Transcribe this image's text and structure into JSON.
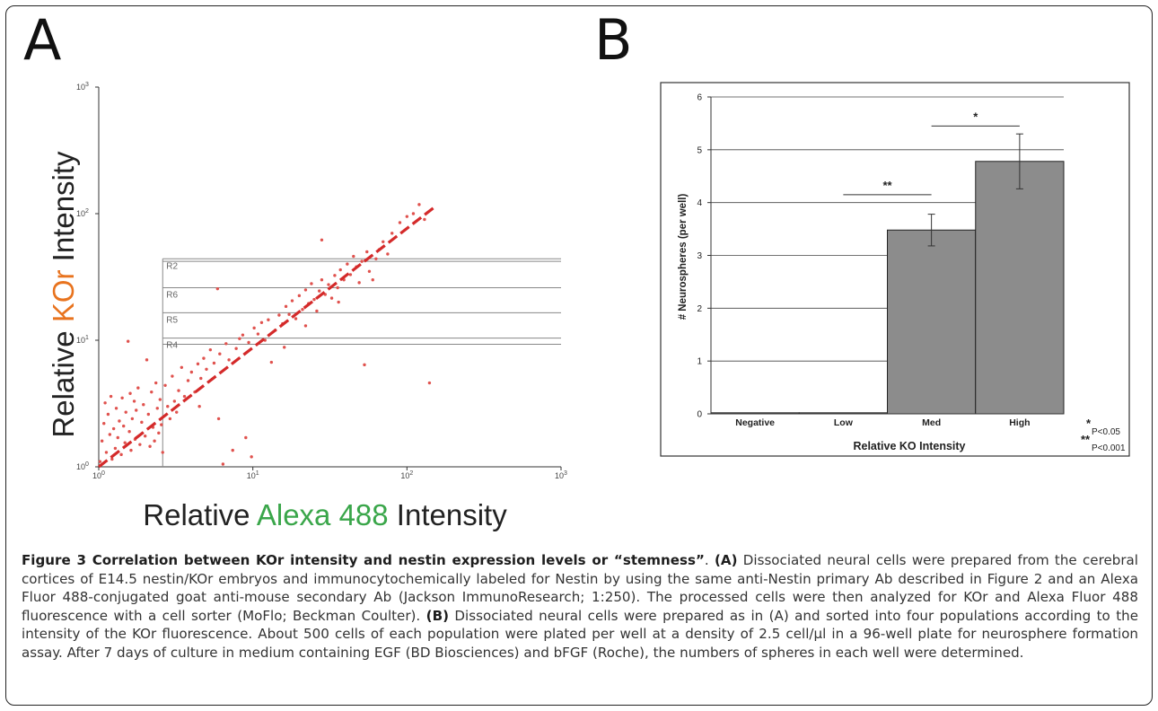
{
  "panel_a": {
    "letter": "A",
    "y_axis_label": {
      "prefix": "Relative ",
      "highlight": "KOr",
      "suffix": " Intensity",
      "highlight_color": "#e8731e"
    },
    "x_axis_label": {
      "prefix": "Relative ",
      "highlight": "Alexa 488",
      "suffix": " Intensity",
      "highlight_color": "#3aa64a"
    },
    "regions": [
      {
        "label": "R2",
        "y_low": 42,
        "y_high": 44
      },
      {
        "label": "R6",
        "y_low": 26,
        "y_high": 26
      },
      {
        "label": "R5",
        "y_low": 16.5,
        "y_high": 16.5
      },
      {
        "label": "R4",
        "y_low": 9.3,
        "y_high": 10.4,
        "x_start": 2.6
      }
    ],
    "colors": {
      "points": "#e0524e",
      "trend": "#d42a2a",
      "gates": "#888888"
    }
  },
  "panel_b": {
    "letter": "B",
    "significance": [
      {
        "label": "**",
        "between": [
          "Low",
          "Med"
        ],
        "y": 4.15
      },
      {
        "label": "*",
        "between": [
          "Med",
          "High"
        ],
        "y": 5.45
      }
    ],
    "p_values": [
      {
        "stars": "*",
        "text": "P<0.05"
      },
      {
        "stars": "**",
        "text": "P<0.001"
      }
    ],
    "colors": {
      "bar": "#8c8c8c"
    }
  },
  "chart_data": [
    {
      "type": "scatter",
      "x_scale": "log",
      "y_scale": "log",
      "xlim": [
        1,
        1000
      ],
      "ylim": [
        1,
        1000
      ],
      "xticks": [
        1,
        10,
        100,
        1000
      ],
      "yticks": [
        1,
        10,
        100,
        1000
      ],
      "tick_labels": {
        "x": [
          {
            "base": "10",
            "exp": "0"
          },
          {
            "base": "10",
            "exp": "1"
          },
          {
            "base": "10",
            "exp": "2"
          },
          {
            "base": "10",
            "exp": "3"
          }
        ],
        "y": [
          {
            "base": "10",
            "exp": "0"
          },
          {
            "base": "10",
            "exp": "1"
          },
          {
            "base": "10",
            "exp": "2"
          },
          {
            "base": "10",
            "exp": "3"
          }
        ]
      },
      "xlabel": "Relative Alexa 488 Intensity",
      "ylabel": "Relative KOr Intensity",
      "trend_line": {
        "x": [
          1,
          150
        ],
        "y": [
          1,
          112
        ]
      },
      "points": [
        [
          1.02,
          1.1
        ],
        [
          1.05,
          1.6
        ],
        [
          1.08,
          2.2
        ],
        [
          1.1,
          3.2
        ],
        [
          1.12,
          1.3
        ],
        [
          1.15,
          2.6
        ],
        [
          1.18,
          1.8
        ],
        [
          1.2,
          3.6
        ],
        [
          1.22,
          1.15
        ],
        [
          1.25,
          2.0
        ],
        [
          1.28,
          1.4
        ],
        [
          1.3,
          2.9
        ],
        [
          1.33,
          1.7
        ],
        [
          1.36,
          2.3
        ],
        [
          1.4,
          1.25
        ],
        [
          1.42,
          3.5
        ],
        [
          1.45,
          2.1
        ],
        [
          1.48,
          1.55
        ],
        [
          1.5,
          2.7
        ],
        [
          1.55,
          9.8
        ],
        [
          1.58,
          1.9
        ],
        [
          1.6,
          3.8
        ],
        [
          1.62,
          1.35
        ],
        [
          1.65,
          2.4
        ],
        [
          1.7,
          3.3
        ],
        [
          1.72,
          1.65
        ],
        [
          1.75,
          2.8
        ],
        [
          1.8,
          4.2
        ],
        [
          1.85,
          1.5
        ],
        [
          1.9,
          2.25
        ],
        [
          1.95,
          3.1
        ],
        [
          2.0,
          1.75
        ],
        [
          2.05,
          7.0
        ],
        [
          2.1,
          2.6
        ],
        [
          2.15,
          1.45
        ],
        [
          2.2,
          3.9
        ],
        [
          2.25,
          2.05
        ],
        [
          2.3,
          1.6
        ],
        [
          2.35,
          4.6
        ],
        [
          2.4,
          2.9
        ],
        [
          2.45,
          1.85
        ],
        [
          2.5,
          3.4
        ],
        [
          2.55,
          2.15
        ],
        [
          2.6,
          1.3
        ],
        [
          2.7,
          4.4
        ],
        [
          2.8,
          3.0
        ],
        [
          2.9,
          2.4
        ],
        [
          3.0,
          5.2
        ],
        [
          3.1,
          3.3
        ],
        [
          3.2,
          2.7
        ],
        [
          3.3,
          4.0
        ],
        [
          3.45,
          6.1
        ],
        [
          3.6,
          3.6
        ],
        [
          3.8,
          4.8
        ],
        [
          4.0,
          5.6
        ],
        [
          4.2,
          3.9
        ],
        [
          4.4,
          6.5
        ],
        [
          4.6,
          5.0
        ],
        [
          4.8,
          7.2
        ],
        [
          5.0,
          5.9
        ],
        [
          5.3,
          8.4
        ],
        [
          5.6,
          6.6
        ],
        [
          5.9,
          25.5
        ],
        [
          6.1,
          7.8
        ],
        [
          6.4,
          1.05
        ],
        [
          6.7,
          9.4
        ],
        [
          7.0,
          7.0
        ],
        [
          7.4,
          1.35
        ],
        [
          7.8,
          8.6
        ],
        [
          8.2,
          10.3
        ],
        [
          8.6,
          11.0
        ],
        [
          9.0,
          1.7
        ],
        [
          9.4,
          9.6
        ],
        [
          9.8,
          1.2
        ],
        [
          10.2,
          12.5
        ],
        [
          10.8,
          11.2
        ],
        [
          11.4,
          13.8
        ],
        [
          12.0,
          10.0
        ],
        [
          12.6,
          14.5
        ],
        [
          13.2,
          6.7
        ],
        [
          14.0,
          12.0
        ],
        [
          14.8,
          15.8
        ],
        [
          15.6,
          13.5
        ],
        [
          16.4,
          18.5
        ],
        [
          17.2,
          16.0
        ],
        [
          18.0,
          20.5
        ],
        [
          19.0,
          14.8
        ],
        [
          20.0,
          22.5
        ],
        [
          21.0,
          17.5
        ],
        [
          22.0,
          25.0
        ],
        [
          23.0,
          19.5
        ],
        [
          24.0,
          28.0
        ],
        [
          25.0,
          21.0
        ],
        [
          26.0,
          17.0
        ],
        [
          27.0,
          24.5
        ],
        [
          28.0,
          30.0
        ],
        [
          29.5,
          23.0
        ],
        [
          31.0,
          27.5
        ],
        [
          32.5,
          21.5
        ],
        [
          34.0,
          32.5
        ],
        [
          35.5,
          26.0
        ],
        [
          37.0,
          36.0
        ],
        [
          39.0,
          30.0
        ],
        [
          41.0,
          40.0
        ],
        [
          43.0,
          33.0
        ],
        [
          45.0,
          46.0
        ],
        [
          47.0,
          38.0
        ],
        [
          49.0,
          28.5
        ],
        [
          51.0,
          42.0
        ],
        [
          53.0,
          6.4
        ],
        [
          55.0,
          50.0
        ],
        [
          57.0,
          35.0
        ],
        [
          60.0,
          30.0
        ],
        [
          63.0,
          44.0
        ],
        [
          66.0,
          52.0
        ],
        [
          70.0,
          60.0
        ],
        [
          75.0,
          48.0
        ],
        [
          80.0,
          70.0
        ],
        [
          90.0,
          85.0
        ],
        [
          100.0,
          95.0
        ],
        [
          110.0,
          100.0
        ],
        [
          120.0,
          118.0
        ],
        [
          130.0,
          90.0
        ],
        [
          140.0,
          4.6
        ],
        [
          28.0,
          62.0
        ],
        [
          16.0,
          8.8
        ],
        [
          6.0,
          2.4
        ],
        [
          4.5,
          3.0
        ],
        [
          22.0,
          13.0
        ],
        [
          36.0,
          20.0
        ]
      ]
    },
    {
      "type": "bar",
      "categories": [
        "Negative",
        "Low",
        "Med",
        "High"
      ],
      "values": [
        0.02,
        0.02,
        3.48,
        4.78
      ],
      "errors": [
        0,
        0,
        0.3,
        0.52
      ],
      "ylim": [
        0,
        6
      ],
      "yticks": [
        0,
        1,
        2,
        3,
        4,
        5,
        6
      ],
      "xlabel": "Relative KO Intensity",
      "ylabel": "# Neurospheres (per well)",
      "grid": true
    }
  ],
  "caption": {
    "title": "Figure 3 Correlation between KOr intensity and nestin expression levels or “stemness”",
    "title_end": ".",
    "part_a_label": "(A)",
    "part_a": " Dissociated neural cells were prepared from the cerebral cortices of E14.5 nestin/KOr embryos and immunocytochemically labeled for Nestin by using the same anti-Nestin primary Ab described in Figure 2 and an Alexa Fluor 488-conjugated goat anti-mouse secondary Ab (Jackson ImmunoResearch; 1:250). The processed cells were then analyzed for KOr and Alexa Fluor 488 fluorescence with a cell sorter (MoFlo; Beckman Coulter). ",
    "part_b_label": "(B)",
    "part_b": " Dissociated neural cells were prepared as in (A) and sorted into four populations according to the intensity of the KOr fluorescence. About 500 cells of each population were plated per well at a density of 2.5 cell/µl in a 96-well plate for neurosphere formation assay. After 7 days of culture in medium containing EGF (BD Biosciences) and bFGF (Roche), the numbers of spheres in each well were determined."
  }
}
